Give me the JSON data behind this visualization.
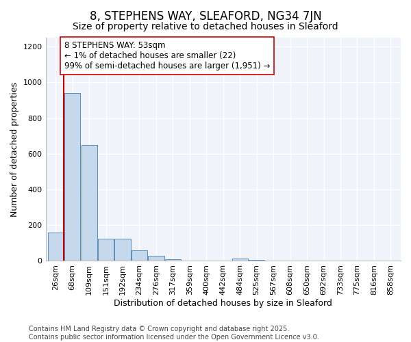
{
  "title": "8, STEPHENS WAY, SLEAFORD, NG34 7JN",
  "subtitle": "Size of property relative to detached houses in Sleaford",
  "xlabel": "Distribution of detached houses by size in Sleaford",
  "ylabel": "Number of detached properties",
  "categories": [
    "26sqm",
    "68sqm",
    "109sqm",
    "151sqm",
    "192sqm",
    "234sqm",
    "276sqm",
    "317sqm",
    "359sqm",
    "400sqm",
    "442sqm",
    "484sqm",
    "525sqm",
    "567sqm",
    "608sqm",
    "650sqm",
    "692sqm",
    "733sqm",
    "775sqm",
    "816sqm",
    "858sqm"
  ],
  "values": [
    160,
    940,
    650,
    125,
    125,
    58,
    28,
    10,
    0,
    0,
    0,
    13,
    5,
    0,
    0,
    0,
    0,
    0,
    0,
    0,
    0
  ],
  "bar_color": "#c5d8ec",
  "bar_edge_color": "#5b8db8",
  "property_line_color": "#cc0000",
  "property_line_x": 0.5,
  "annotation_text": "8 STEPHENS WAY: 53sqm\n← 1% of detached houses are smaller (22)\n99% of semi-detached houses are larger (1,951) →",
  "annotation_box_facecolor": "#ffffff",
  "annotation_box_edgecolor": "#cc0000",
  "ylim": [
    0,
    1250
  ],
  "yticks": [
    0,
    200,
    400,
    600,
    800,
    1000,
    1200
  ],
  "background_color": "#ffffff",
  "plot_bg_color": "#f0f4fa",
  "grid_color": "#ffffff",
  "footer": "Contains HM Land Registry data © Crown copyright and database right 2025.\nContains public sector information licensed under the Open Government Licence v3.0.",
  "title_fontsize": 12,
  "subtitle_fontsize": 10,
  "annotation_fontsize": 8.5,
  "label_fontsize": 9,
  "tick_fontsize": 8,
  "footer_fontsize": 7
}
